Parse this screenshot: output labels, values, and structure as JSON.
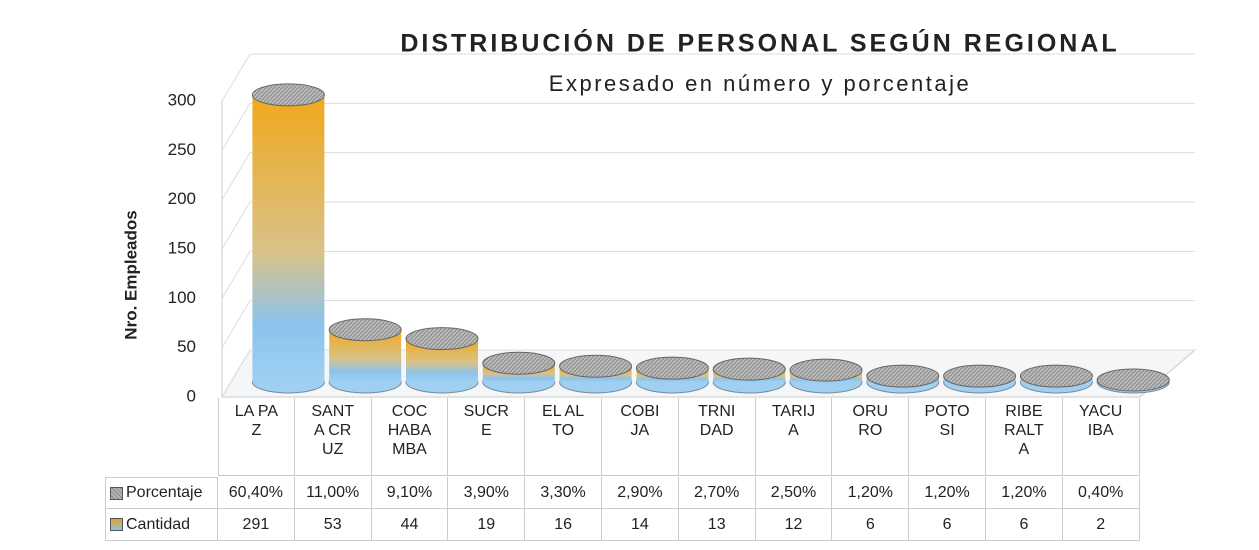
{
  "chart_data": {
    "type": "bar",
    "title": "DISTRIBUCIÓN DE PERSONAL SEGÚN REGIONAL",
    "subtitle": "Expresado en número y porcentaje",
    "y_label": "Nro. Empleados",
    "categories": [
      "LA PAZ",
      "SANTA CRUZ",
      "COCHABAMBA",
      "SUCRE",
      "EL ALTO",
      "COBIJA",
      "TRNIDAD",
      "TARIJA",
      "ORURO",
      "POTOSI",
      "RIBERALTA",
      "YACUIBA"
    ],
    "series": [
      {
        "name": "Porcentaje",
        "color": "#b4b4b4",
        "values": [
          60.4,
          11,
          9.1,
          3.9,
          3.3,
          2.9,
          2.7,
          2.5,
          1.2,
          1.2,
          1.2,
          0.4
        ],
        "value_labels": [
          "60,40%",
          "11,00%",
          "9,10%",
          "3,90%",
          "3,30%",
          "2,90%",
          "2,70%",
          "2,50%",
          "1,20%",
          "1,20%",
          "1,20%",
          "0,40%"
        ]
      },
      {
        "name": "Cantidad",
        "color": "#e9a21c",
        "values": [
          291,
          53,
          44,
          19,
          16,
          14,
          13,
          12,
          6,
          6,
          6,
          2
        ],
        "plotted": true
      }
    ],
    "ylim": [
      0,
      300
    ],
    "yticks": [
      0,
      50,
      100,
      150,
      200,
      250,
      300
    ],
    "grid": true
  }
}
